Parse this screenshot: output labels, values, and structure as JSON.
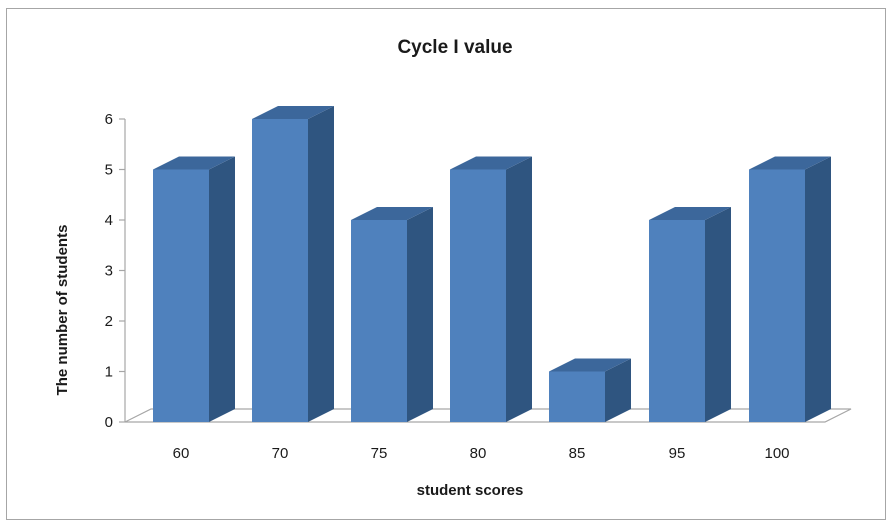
{
  "chart_data": {
    "type": "bar",
    "title": "Cycle I value",
    "xlabel": "student scores",
    "ylabel": "The number of students",
    "categories": [
      "60",
      "70",
      "75",
      "80",
      "85",
      "95",
      "100"
    ],
    "values": [
      5,
      6,
      4,
      5,
      1,
      4,
      5
    ],
    "ylim": [
      0,
      6
    ],
    "yticks": [
      0,
      1,
      2,
      3,
      4,
      5,
      6
    ],
    "grid": false,
    "legend": "none",
    "style": "3d-column",
    "colors": {
      "bar_front": "#4f81bd",
      "bar_side": "#2f5580",
      "bar_top": "#3c679b",
      "floor_line": "#a6a6a6",
      "axis_line": "#a6a6a6"
    }
  }
}
